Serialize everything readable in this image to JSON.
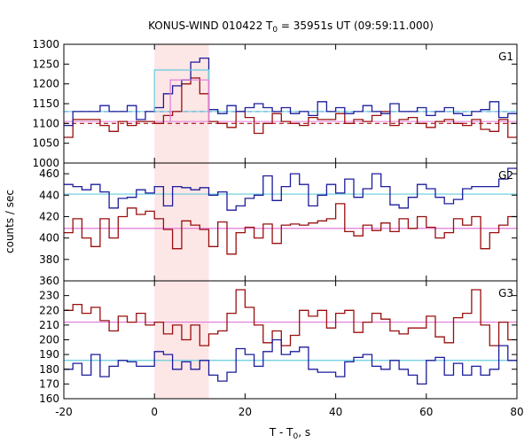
{
  "chart_data": {
    "type": "line",
    "title": "KONUS-WIND 010422 T",
    "title_sub": "0",
    "title_rest": " = 35951s UT (09:59:11.000)",
    "xlabel": "T - T",
    "xlabel_sub": "0",
    "xlabel_rest": ", s",
    "ylabel": "counts / sec",
    "xlim": [
      -20,
      80
    ],
    "x_ticks": [
      "-20",
      "0",
      "20",
      "40",
      "60",
      "80"
    ],
    "highlight_interval": [
      0,
      12
    ],
    "colors": {
      "blue": "#1c1c9c",
      "red": "#9a0e0e",
      "light_blue": "#66ccdd",
      "pink": "#e07ad8",
      "highlight": "#fde6e6",
      "blue_dashed": "#2222aa",
      "red_dashed": "#aa1111"
    },
    "panels": [
      {
        "name": "G1",
        "ylim": [
          1000,
          1300
        ],
        "y_ticks": [
          1000,
          1050,
          1100,
          1150,
          1200,
          1250,
          1300
        ],
        "blue_bg": 1130,
        "red_bg": 1100,
        "bin_start": -20,
        "bin_width": 2,
        "series_blue": [
          1095,
          1130,
          1130,
          1130,
          1145,
          1130,
          1130,
          1145,
          1110,
          1130,
          1140,
          1175,
          1195,
          1210,
          1255,
          1265,
          1135,
          1125,
          1145,
          1130,
          1140,
          1150,
          1140,
          1130,
          1140,
          1125,
          1130,
          1120,
          1155,
          1130,
          1140,
          1125,
          1130,
          1145,
          1130,
          1125,
          1150,
          1130,
          1130,
          1140,
          1120,
          1130,
          1140,
          1125,
          1120,
          1130,
          1135,
          1155,
          1115,
          1125
        ],
        "series_red": [
          1065,
          1110,
          1110,
          1110,
          1095,
          1080,
          1105,
          1095,
          1105,
          1105,
          1100,
          1120,
          1130,
          1200,
          1215,
          1175,
          1105,
          1100,
          1090,
          1130,
          1115,
          1075,
          1100,
          1125,
          1105,
          1100,
          1095,
          1115,
          1110,
          1110,
          1125,
          1100,
          1110,
          1105,
          1120,
          1130,
          1095,
          1110,
          1115,
          1100,
          1090,
          1105,
          1110,
          1100,
          1095,
          1110,
          1085,
          1080,
          1110,
          1065
        ],
        "overlay_blue": [
          1130,
          1130,
          1130,
          1130,
          1130,
          1130,
          1130,
          1130,
          1130,
          1130,
          1235,
          1235,
          1235,
          1235,
          1235,
          1235
        ],
        "overlay_pink": [
          1105,
          1105,
          1105,
          1105,
          1105,
          1105,
          1105,
          1105,
          1105,
          1105,
          1210,
          1210,
          1210,
          1210,
          1210,
          1210
        ]
      },
      {
        "name": "G2",
        "ylim": [
          360,
          470
        ],
        "y_ticks": [
          360,
          380,
          400,
          420,
          440,
          460
        ],
        "blue_bg": 441,
        "red_bg": 409,
        "bin_start": -20,
        "bin_width": 2,
        "series_blue": [
          450,
          448,
          445,
          450,
          443,
          428,
          437,
          438,
          445,
          442,
          448,
          430,
          448,
          447,
          445,
          447,
          440,
          443,
          426,
          430,
          437,
          440,
          458,
          435,
          448,
          460,
          450,
          430,
          440,
          450,
          442,
          455,
          438,
          446,
          460,
          448,
          431,
          428,
          438,
          450,
          446,
          438,
          432,
          436,
          446,
          448,
          448,
          448,
          455,
          465
        ],
        "series_red": [
          405,
          418,
          400,
          392,
          418,
          400,
          420,
          428,
          422,
          425,
          418,
          408,
          390,
          416,
          412,
          408,
          392,
          415,
          385,
          405,
          410,
          400,
          413,
          395,
          412,
          413,
          412,
          414,
          416,
          418,
          432,
          406,
          402,
          412,
          407,
          414,
          406,
          418,
          409,
          420,
          410,
          400,
          405,
          418,
          412,
          420,
          390,
          405,
          412,
          420
        ],
        "bg_lines": true
      },
      {
        "name": "G3",
        "ylim": [
          160,
          240
        ],
        "y_ticks": [
          160,
          170,
          180,
          190,
          200,
          210,
          220,
          230
        ],
        "blue_bg": 186,
        "red_bg": 212,
        "bin_start": -20,
        "bin_width": 2,
        "series_blue": [
          180,
          184,
          176,
          190,
          175,
          182,
          186,
          185,
          182,
          182,
          192,
          190,
          180,
          185,
          180,
          186,
          176,
          172,
          178,
          194,
          190,
          182,
          192,
          200,
          190,
          192,
          195,
          180,
          178,
          178,
          175,
          185,
          188,
          190,
          182,
          180,
          186,
          180,
          176,
          170,
          186,
          188,
          176,
          184,
          176,
          182,
          176,
          180,
          196,
          186
        ],
        "series_red": [
          220,
          224,
          218,
          222,
          213,
          206,
          216,
          212,
          218,
          210,
          212,
          204,
          210,
          200,
          210,
          196,
          204,
          206,
          218,
          234,
          222,
          210,
          198,
          206,
          196,
          203,
          220,
          216,
          220,
          208,
          218,
          220,
          205,
          212,
          218,
          214,
          206,
          204,
          208,
          208,
          216,
          202,
          198,
          215,
          218,
          234,
          210,
          196,
          212,
          200
        ]
      }
    ]
  }
}
